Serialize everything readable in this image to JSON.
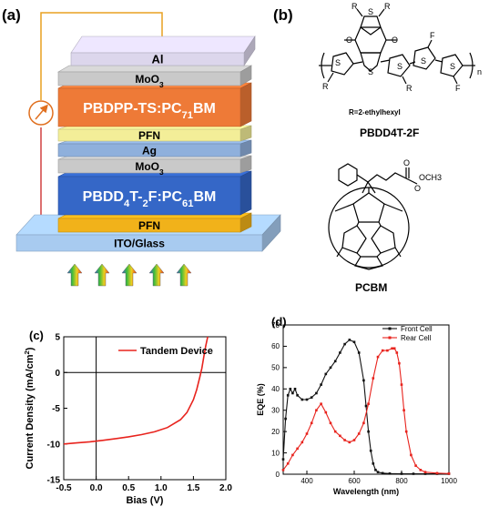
{
  "panels": {
    "a": "(a)",
    "b": "(b)",
    "c": "(c)",
    "d": "(d)"
  },
  "device_stack": {
    "layers": [
      {
        "label": "Al",
        "color": "#dcd6ec"
      },
      {
        "label": "MoO3",
        "color": "#c9c9c9"
      },
      {
        "label": "PBDPP-TS:PC71BM",
        "color": "#ee7a37"
      },
      {
        "label": "PFN",
        "color": "#f3ee98"
      },
      {
        "label": "Ag",
        "color": "#8fb0dc"
      },
      {
        "label": "MoO3",
        "color": "#c9c9c9"
      },
      {
        "label": "PBDD4T-2F:PC61BM",
        "color": "#3567c7"
      },
      {
        "label": "PFN",
        "color": "#f1b21a"
      },
      {
        "label": "ITO/Glass",
        "color": "#a8cbf0"
      }
    ]
  },
  "molecules": {
    "polymer_substituent": "R=2-ethylhexyl",
    "polymer_name": "PBDD4T-2F",
    "fullerene_name": "PCBM",
    "atoms": {
      "R": "R",
      "O": "O",
      "S": "S",
      "F": "F",
      "n": "n",
      "ester": "OCH3"
    }
  },
  "chart_data": [
    {
      "type": "line",
      "panel": "c",
      "xlabel": "Bias (V)",
      "ylabel": "Current Density (mA/cm2)",
      "xlim": [
        -0.5,
        2.0
      ],
      "ylim": [
        -15,
        5
      ],
      "xticks": [
        "-0.5",
        "0.0",
        "0.5",
        "1.0",
        "1.5",
        "2.0"
      ],
      "yticks": [
        "5",
        "0",
        "-5",
        "-10",
        "-15"
      ],
      "legend": "top-right",
      "series": [
        {
          "name": "Tandem Device",
          "color": "#e8231d",
          "x": [
            -0.5,
            -0.3,
            -0.1,
            0.1,
            0.3,
            0.5,
            0.7,
            0.9,
            1.1,
            1.3,
            1.4,
            1.5,
            1.55,
            1.6,
            1.63,
            1.66,
            1.69,
            1.72
          ],
          "y": [
            -10.0,
            -9.85,
            -9.7,
            -9.5,
            -9.25,
            -9.0,
            -8.7,
            -8.3,
            -7.7,
            -6.6,
            -5.6,
            -3.8,
            -2.4,
            -0.6,
            0.6,
            2.2,
            3.7,
            5.0
          ]
        }
      ]
    },
    {
      "type": "line",
      "panel": "d",
      "xlabel": "Wavelength (nm)",
      "ylabel": "EQE (%)",
      "xlim": [
        300,
        1000
      ],
      "ylim": [
        0,
        70
      ],
      "xticks": [
        "400",
        "600",
        "800",
        "1000"
      ],
      "yticks": [
        "0",
        "10",
        "20",
        "30",
        "40",
        "50",
        "60",
        "70"
      ],
      "legend": "top-right",
      "series": [
        {
          "name": "Front Cell",
          "color": "#111111",
          "x": [
            300,
            310,
            320,
            330,
            340,
            350,
            360,
            380,
            400,
            420,
            440,
            460,
            480,
            500,
            520,
            540,
            560,
            580,
            600,
            620,
            640,
            650,
            660,
            670,
            680,
            690,
            700,
            720,
            750,
            800,
            850,
            900,
            950,
            1000
          ],
          "y": [
            7,
            26,
            37,
            40,
            38,
            40,
            37,
            35,
            35,
            36,
            38,
            42,
            47,
            50,
            53,
            57,
            61,
            63,
            62,
            57,
            44,
            32,
            20,
            11,
            5,
            2,
            1,
            0.5,
            0.3,
            0.2,
            0.2,
            0.2,
            0.2,
            0.2
          ]
        },
        {
          "name": "Rear Cell",
          "color": "#e8231d",
          "x": [
            300,
            320,
            340,
            360,
            380,
            400,
            420,
            440,
            460,
            480,
            500,
            520,
            540,
            560,
            580,
            600,
            620,
            640,
            660,
            680,
            700,
            720,
            740,
            760,
            770,
            780,
            790,
            800,
            810,
            820,
            840,
            860,
            880,
            900,
            950,
            1000
          ],
          "y": [
            2,
            5,
            9,
            12,
            15,
            19,
            24,
            30,
            33,
            29,
            24,
            20,
            18,
            16,
            15,
            16,
            19,
            24,
            33,
            45,
            55,
            58,
            58,
            59,
            59,
            57,
            52,
            42,
            30,
            20,
            9,
            4,
            2,
            1,
            0.5,
            0.3
          ]
        }
      ]
    }
  ]
}
